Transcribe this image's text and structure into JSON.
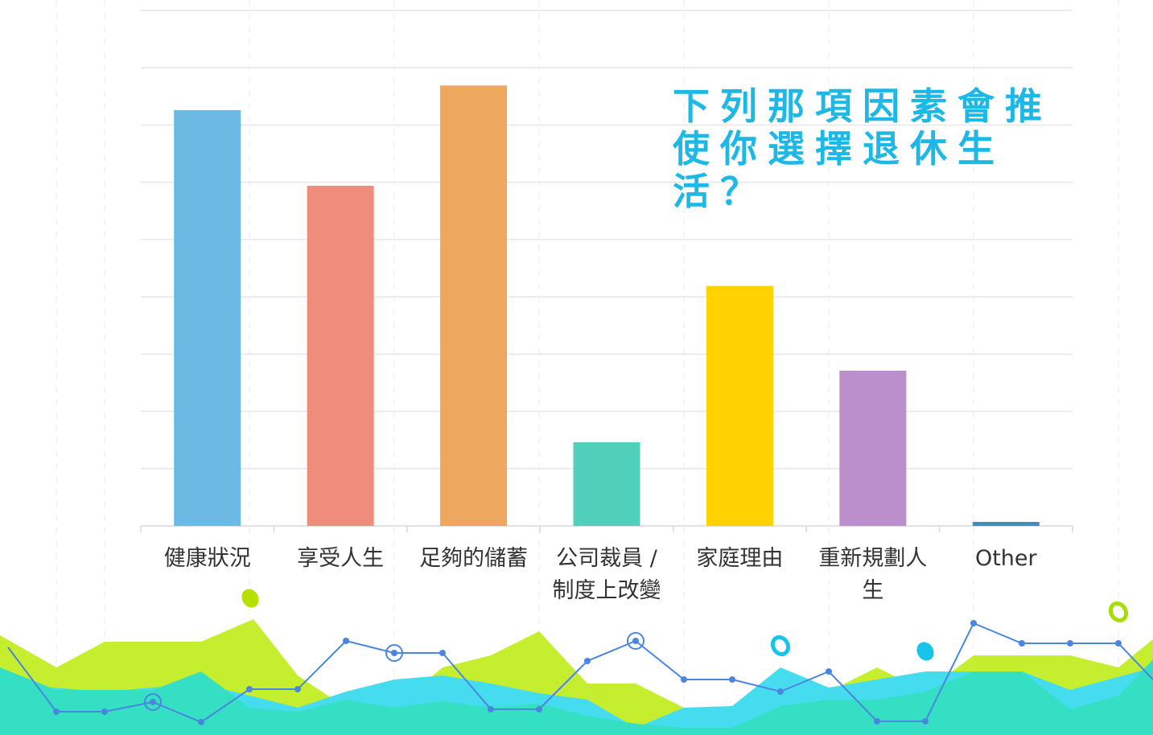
{
  "chart_data": {
    "type": "bar",
    "title": "下列那項因素會推使你選擇退休生活？",
    "categories": [
      "健康狀況",
      "享受人生",
      "足夠的儲蓄",
      "公司裁員 / 制度上改變",
      "家庭理由",
      "重新規劃人生",
      "Other"
    ],
    "values": [
      7.26,
      5.94,
      7.69,
      1.46,
      4.19,
      2.71,
      0.07
    ],
    "colors": [
      "#6cb9e3",
      "#ef8c7c",
      "#eda75e",
      "#50cfbb",
      "#ffd200",
      "#bb8fcb",
      "#3e8ebf"
    ],
    "ylim": [
      0,
      9
    ],
    "yticks": [
      0,
      1,
      2,
      3,
      4,
      5,
      6,
      7,
      8,
      9
    ],
    "grid": true
  }
}
